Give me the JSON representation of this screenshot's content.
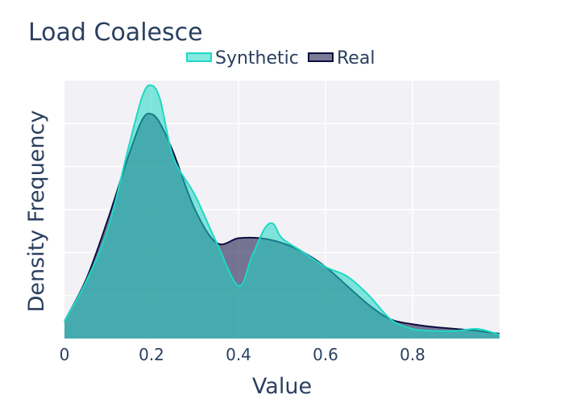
{
  "chart_data": {
    "type": "area",
    "title": "Load Coalesce",
    "xlabel": "Value",
    "ylabel": "Density Frequency",
    "xlim": [
      0,
      1
    ],
    "ylim": [
      0,
      2.7
    ],
    "x_ticks": [
      0,
      0.2,
      0.4,
      0.6,
      0.8
    ],
    "x_tick_labels": [
      "0",
      "0.2",
      "0.4",
      "0.6",
      "0.8"
    ],
    "grid": true,
    "legend_position": "top-center",
    "legend": [
      "Synthetic",
      "Real"
    ],
    "series": [
      {
        "name": "Synthetic",
        "color": "#1fd8c5",
        "fill": "rgba(31, 216, 197, 0.55)",
        "x": [
          0,
          0.05,
          0.1,
          0.15,
          0.18,
          0.2,
          0.22,
          0.25,
          0.3,
          0.35,
          0.4,
          0.43,
          0.46,
          0.48,
          0.5,
          0.55,
          0.6,
          0.65,
          0.7,
          0.75,
          0.8,
          0.85,
          0.9,
          0.95,
          1.0
        ],
        "values": [
          0.18,
          0.6,
          1.15,
          2.05,
          2.55,
          2.65,
          2.5,
          1.9,
          1.5,
          1.0,
          0.55,
          0.85,
          1.15,
          1.2,
          1.05,
          0.9,
          0.75,
          0.65,
          0.45,
          0.2,
          0.1,
          0.08,
          0.08,
          0.1,
          0.04
        ]
      },
      {
        "name": "Real",
        "color": "#0d0d40",
        "fill": "rgba(13, 13, 64, 0.55)",
        "x": [
          0,
          0.05,
          0.1,
          0.15,
          0.18,
          0.2,
          0.22,
          0.25,
          0.3,
          0.35,
          0.4,
          0.45,
          0.5,
          0.55,
          0.6,
          0.65,
          0.7,
          0.75,
          0.8,
          0.85,
          0.9,
          0.95,
          1.0
        ],
        "values": [
          0.18,
          0.62,
          1.25,
          1.95,
          2.3,
          2.35,
          2.25,
          1.95,
          1.35,
          1.0,
          1.05,
          1.05,
          1.0,
          0.9,
          0.75,
          0.55,
          0.35,
          0.2,
          0.15,
          0.12,
          0.1,
          0.08,
          0.05
        ]
      }
    ]
  }
}
